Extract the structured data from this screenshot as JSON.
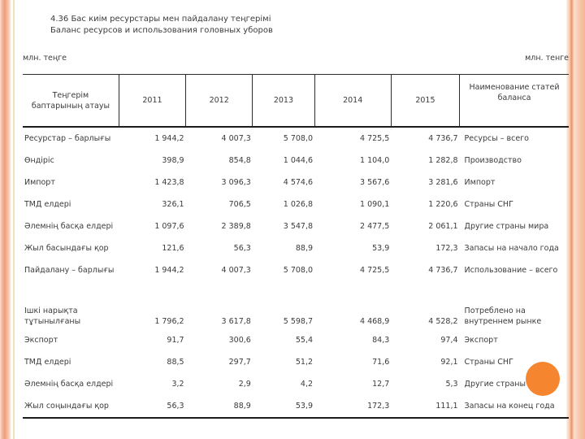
{
  "page": {
    "title_kk": "4.36 Бас киім ресурстары мен пайдалану теңгерімі",
    "title_ru": "Баланс ресурсов и использования головных уборов",
    "unit_left": "млн. теңге",
    "unit_right": "млн. тенге"
  },
  "table": {
    "header": {
      "name_kk": "Теңгерім баптарының атауы",
      "years": [
        "2011",
        "2012",
        "2013",
        "2014",
        "2015"
      ],
      "name_ru": "Наименование статей баланса"
    },
    "rows": [
      {
        "kk": "Ресурстар – барлығы",
        "values": [
          "1 944,2",
          "4 007,3",
          "5 708,0",
          "4 725,5",
          "4 736,7"
        ],
        "ru": "Ресурсы – всего"
      },
      {
        "kk": "Өндіріс",
        "values": [
          "398,9",
          "854,8",
          "1 044,6",
          "1 104,0",
          "1 282,8"
        ],
        "ru": "Производство"
      },
      {
        "kk": "Импорт",
        "values": [
          "1 423,8",
          "3 096,3",
          "4 574,6",
          "3 567,6",
          "3 281,6"
        ],
        "ru": "Импорт"
      },
      {
        "kk": "ТМД елдері",
        "values": [
          "326,1",
          "706,5",
          "1 026,8",
          "1 090,1",
          "1 220,6"
        ],
        "ru": "Страны СНГ"
      },
      {
        "kk": "Әлемнің басқа елдері",
        "values": [
          "1 097,6",
          "2 389,8",
          "3 547,8",
          "2 477,5",
          "2 061,1"
        ],
        "ru": "Другие страны мира"
      },
      {
        "kk": "Жыл басындағы қор",
        "values": [
          "121,6",
          "56,3",
          "88,9",
          "53,9",
          "172,3"
        ],
        "ru": "Запасы на начало года"
      },
      {
        "kk": "Пайдалану – барлығы",
        "values": [
          "1 944,2",
          "4 007,3",
          "5 708,0",
          "4 725,5",
          "4 736,7"
        ],
        "ru": "Использование – всего"
      },
      {
        "kk": "Ішкі нарықта тұтынылғаны",
        "tall": true,
        "values": [
          "1 796,2",
          "3 617,8",
          "5 598,7",
          "4 468,9",
          "4 528,2"
        ],
        "ru": "Потреблено на внутреннем рынке"
      },
      {
        "kk": "Экспорт",
        "values": [
          "91,7",
          "300,6",
          "55,4",
          "84,3",
          "97,4"
        ],
        "ru": "Экспорт"
      },
      {
        "kk": "ТМД елдері",
        "values": [
          "88,5",
          "297,7",
          "51,2",
          "71,6",
          "92,1"
        ],
        "ru": "Страны СНГ"
      },
      {
        "kk": "Әлемнің басқа елдері",
        "values": [
          "3,2",
          "2,9",
          "4,2",
          "12,7",
          "5,3"
        ],
        "ru": "Другие страны мира"
      },
      {
        "kk": "Жыл соңындағы қор",
        "values": [
          "56,3",
          "88,9",
          "53,9",
          "172,3",
          "111,1"
        ],
        "ru": "Запасы на конец года"
      }
    ]
  },
  "decor": {
    "accent_circle_color": "#f5862f",
    "stripe_dark": "#ee9f7e",
    "stripe_light": "#fbe0cf",
    "accent_line": "#f0e2bc"
  }
}
